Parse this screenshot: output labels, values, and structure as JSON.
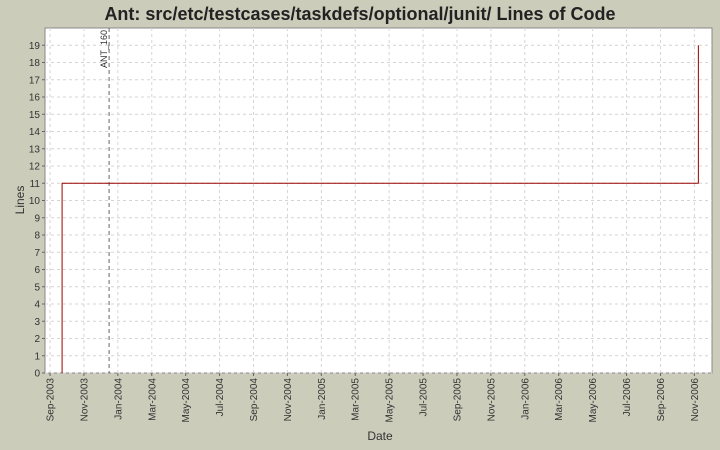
{
  "chart_data": {
    "type": "line",
    "title": "Ant: src/etc/testcases/taskdefs/optional/junit/ Lines of Code",
    "x_label": "Date",
    "y_label": "Lines",
    "x": [
      2003.726,
      2003.726,
      2006.853,
      2006.853
    ],
    "series": [
      {
        "name": "Lines",
        "color": "#990000",
        "values": [
          0,
          11,
          11,
          19
        ]
      }
    ],
    "markers": [
      {
        "x": 2003.957,
        "label": "ANT_160"
      }
    ],
    "xlim": [
      2003.642,
      2006.92
    ],
    "xticks": [
      {
        "value": 2003.6667,
        "label": "Sep-2003"
      },
      {
        "value": 2003.8333,
        "label": "Nov-2003"
      },
      {
        "value": 2004.0,
        "label": "Jan-2004"
      },
      {
        "value": 2004.1667,
        "label": "Mar-2004"
      },
      {
        "value": 2004.3333,
        "label": "May-2004"
      },
      {
        "value": 2004.5,
        "label": "Jul-2004"
      },
      {
        "value": 2004.6667,
        "label": "Sep-2004"
      },
      {
        "value": 2004.8333,
        "label": "Nov-2004"
      },
      {
        "value": 2005.0,
        "label": "Jan-2005"
      },
      {
        "value": 2005.1667,
        "label": "Mar-2005"
      },
      {
        "value": 2005.3333,
        "label": "May-2005"
      },
      {
        "value": 2005.5,
        "label": "Jul-2005"
      },
      {
        "value": 2005.6667,
        "label": "Sep-2005"
      },
      {
        "value": 2005.8333,
        "label": "Nov-2005"
      },
      {
        "value": 2006.0,
        "label": "Jan-2006"
      },
      {
        "value": 2006.1667,
        "label": "Mar-2006"
      },
      {
        "value": 2006.3333,
        "label": "May-2006"
      },
      {
        "value": 2006.5,
        "label": "Jul-2006"
      },
      {
        "value": 2006.6667,
        "label": "Sep-2006"
      },
      {
        "value": 2006.8333,
        "label": "Nov-2006"
      }
    ],
    "ylim": [
      0,
      20
    ],
    "yticks": [
      0,
      1,
      2,
      3,
      4,
      5,
      6,
      7,
      8,
      9,
      10,
      11,
      12,
      13,
      14,
      15,
      16,
      17,
      18,
      19
    ],
    "grid": true
  }
}
